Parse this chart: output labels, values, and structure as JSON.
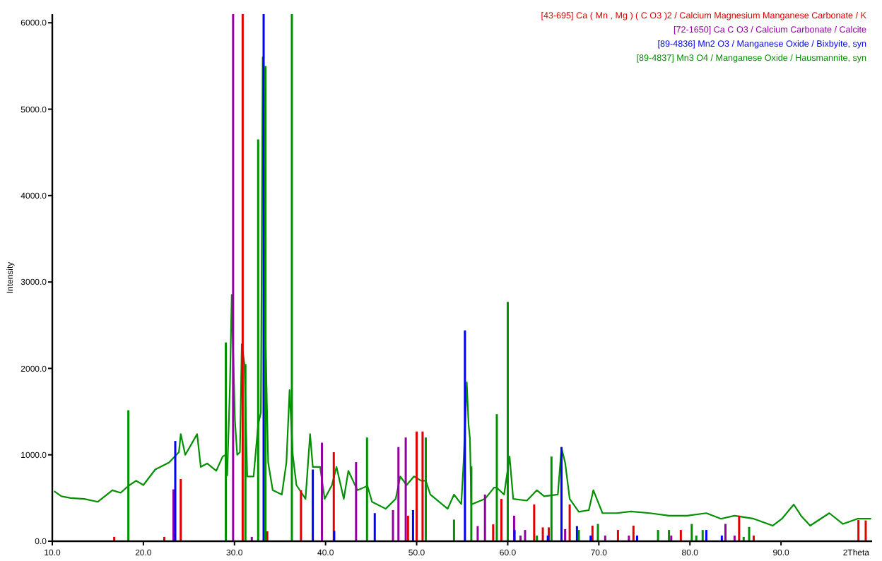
{
  "chart_data": {
    "type": "line",
    "xlabel": "2Theta",
    "ylabel": "Intensity",
    "xlim": [
      10,
      100
    ],
    "ylim": [
      0,
      6100
    ],
    "xticks": [
      {
        "value": 10,
        "label": "10.0"
      },
      {
        "value": 20,
        "label": "20.0"
      },
      {
        "value": 30,
        "label": "30.0"
      },
      {
        "value": 40,
        "label": "40.0"
      },
      {
        "value": 50,
        "label": "50.0"
      },
      {
        "value": 60,
        "label": "60.0"
      },
      {
        "value": 70,
        "label": "70.0"
      },
      {
        "value": 80,
        "label": "80.0"
      },
      {
        "value": 90,
        "label": "90.0"
      }
    ],
    "yticks": [
      {
        "value": 0,
        "label": "0.0"
      },
      {
        "value": 1000,
        "label": "1000.0"
      },
      {
        "value": 2000,
        "label": "2000.0"
      },
      {
        "value": 3000,
        "label": "3000.0"
      },
      {
        "value": 4000,
        "label": "4000.0"
      },
      {
        "value": 5000,
        "label": "5000.0"
      },
      {
        "value": 6000,
        "label": "6000.0"
      }
    ],
    "legend": "top right",
    "series": [
      {
        "color": "#009000",
        "x": [
          10.2,
          11,
          12,
          13.5,
          15,
          16.6,
          17.5,
          18.35,
          19.2,
          20,
          21.3,
          22.8,
          23.9,
          24.1,
          24.6,
          25.9,
          26.3,
          27,
          28,
          28.7,
          29.05,
          29.2,
          29.5,
          29.7,
          30.05,
          30.3,
          30.6,
          30.8,
          31.1,
          31.4,
          32.1,
          32.6,
          32.9,
          33.1,
          33.3,
          33.55,
          33.7,
          34.2,
          35.2,
          35.7,
          36.05,
          36.4,
          36.8,
          37.8,
          38.3,
          38.6,
          39.4,
          39.9,
          40.7,
          41.2,
          42,
          42.5,
          43.5,
          44.6,
          45.1,
          46.6,
          47.7,
          48.2,
          48.9,
          49.7,
          50.5,
          51,
          51.5,
          53.4,
          54.1,
          54.9,
          55.15,
          55.5,
          55.7,
          55.85,
          56,
          57.5,
          58.5,
          58.8,
          59.6,
          60.2,
          60.6,
          62.1,
          63.2,
          64,
          65.5,
          65.9,
          66.3,
          66.8,
          67.8,
          68.9,
          69.4,
          70.4,
          72,
          73.5,
          75.6,
          77.7,
          79.7,
          81.8,
          83.4,
          84.9,
          87,
          89.1,
          90.1,
          91.4,
          92.2,
          93.2,
          95.3,
          96.8,
          98.4,
          99.9
        ],
        "values": [
          580,
          520,
          500,
          490,
          456,
          590,
          560,
          640,
          700,
          650,
          830,
          910,
          1030,
          1240,
          1000,
          1240,
          860,
          900,
          815,
          980,
          1000,
          760,
          1790,
          2850,
          1400,
          1000,
          1030,
          2280,
          2050,
          750,
          750,
          1350,
          1490,
          5600,
          3000,
          1630,
          910,
          590,
          540,
          910,
          1750,
          1000,
          650,
          490,
          1240,
          860,
          860,
          490,
          650,
          860,
          490,
          815,
          590,
          640,
          456,
          375,
          490,
          750,
          650,
          750,
          700,
          700,
          540,
          375,
          540,
          430,
          910,
          1840,
          1350,
          1190,
          425,
          490,
          620,
          620,
          540,
          980,
          490,
          470,
          590,
          520,
          540,
          1080,
          910,
          490,
          340,
          360,
          590,
          325,
          325,
          345,
          325,
          295,
          295,
          325,
          260,
          295,
          260,
          180,
          260,
          425,
          295,
          180,
          325,
          200,
          260,
          260
        ]
      },
      {
        "type": "bar",
        "name": "[43-695]  Ca ( Mn , Mg ) ( C O3 )2 / Calcium Magnesium Manganese Carbonate / K",
        "color": "#e00000",
        "x": [
          16.8,
          22.3,
          24.1,
          30.9,
          33.6,
          37.3,
          40.9,
          49.05,
          50.0,
          50.65,
          58.4,
          59.3,
          62.9,
          63.85,
          64.5,
          66.8,
          69.3,
          72.1,
          73.8,
          79.0,
          85.4,
          87.0,
          98.5,
          99.3
        ],
        "values": [
          50,
          50,
          720,
          6100,
          115,
          590,
          1030,
          295,
          1270,
          1270,
          195,
          490,
          425,
          160,
          160,
          425,
          180,
          130,
          180,
          130,
          295,
          65,
          245,
          240
        ]
      },
      {
        "type": "bar",
        "name": "[72-1650]  Ca C O3 / Calcium Carbonate / Calcite",
        "color": "#9400a0",
        "x": [
          23.3,
          29.85,
          31.9,
          39.6,
          43.35,
          47.4,
          48.0,
          48.8,
          56.7,
          57.5,
          60.7,
          61.4,
          61.9,
          66.3,
          70.7,
          73.3,
          77.95,
          83.9,
          84.9
        ],
        "values": [
          600,
          6100,
          50,
          1140,
          915,
          360,
          1090,
          1200,
          175,
          540,
          295,
          65,
          130,
          140,
          65,
          65,
          65,
          200,
          65
        ]
      },
      {
        "type": "bar",
        "name": "[89-4836]  Mn2 O3 / Manganese Oxide / Bixbyite, syn",
        "color": "#0000ff",
        "x": [
          23.5,
          33.2,
          38.6,
          40.95,
          45.4,
          49.6,
          55.3,
          60.75,
          64.4,
          65.9,
          67.6,
          69.1,
          74.2,
          81.8,
          83.5
        ],
        "values": [
          1160,
          6100,
          830,
          120,
          325,
          360,
          2440,
          130,
          65,
          1090,
          175,
          65,
          65,
          130,
          65
        ]
      },
      {
        "type": "bar",
        "name": "[89-4837]  Mn3 O4 / Manganese Oxide / Hausmannite, syn",
        "color": "#009000",
        "x": [
          18.35,
          29.05,
          31.2,
          32.6,
          33.4,
          36.3,
          44.55,
          51.0,
          54.1,
          56.0,
          58.8,
          60.0,
          63.2,
          64.8,
          67.8,
          69.9,
          76.5,
          77.7,
          80.2,
          80.7,
          81.4,
          85.9,
          86.5
        ],
        "values": [
          1516,
          2300,
          2050,
          4650,
          5500,
          6100,
          1200,
          1200,
          250,
          865,
          1470,
          2770,
          65,
          980,
          130,
          200,
          130,
          130,
          200,
          65,
          130,
          50,
          165
        ]
      }
    ]
  }
}
